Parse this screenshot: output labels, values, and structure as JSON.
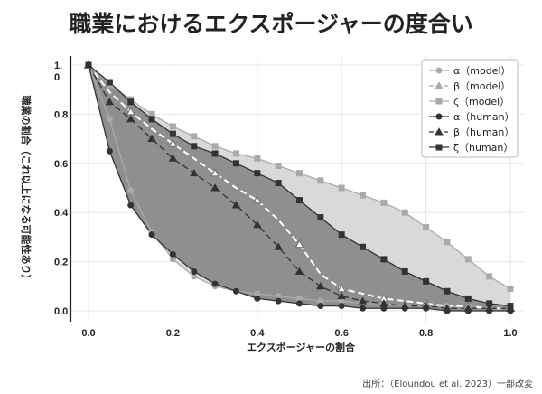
{
  "chart_data": {
    "type": "line",
    "title": "職業におけるエクスポージャーの度合い",
    "xlabel": "エクスポージャーの割合",
    "ylabel": "職業の割合（これ以上になる可能性あり）",
    "source": "出所：（Eloundou et al. 2023）一部改変",
    "xlim": [
      0,
      1
    ],
    "ylim": [
      0,
      1
    ],
    "x_ticks": [
      "0.0",
      "0.2",
      "0.4",
      "0.6",
      "0.8",
      "1.0"
    ],
    "y_ticks": [
      "0.0",
      "0.2",
      "0.4",
      "0.6",
      "0.8",
      "1.\n0"
    ],
    "grid": true,
    "legend_position": "top-right",
    "series": [
      {
        "name": "α（model）",
        "marker": "circle",
        "color": "#aaaaaa",
        "dashed": false,
        "x": [
          0,
          0.05,
          0.1,
          0.15,
          0.2,
          0.25,
          0.3,
          0.35,
          0.4,
          0.45,
          0.5,
          0.55,
          0.6,
          0.65,
          0.7,
          0.75,
          0.8,
          0.85,
          0.9,
          0.95,
          1.0
        ],
        "y": [
          1.0,
          0.78,
          0.49,
          0.32,
          0.21,
          0.14,
          0.1,
          0.08,
          0.07,
          0.06,
          0.05,
          0.04,
          0.04,
          0.03,
          0.03,
          0.02,
          0.02,
          0.02,
          0.01,
          0.01,
          0.01
        ]
      },
      {
        "name": "β（model）",
        "marker": "triangle",
        "color": "#aaaaaa",
        "dashed": true,
        "x": [
          0,
          0.05,
          0.1,
          0.15,
          0.2,
          0.25,
          0.3,
          0.35,
          0.4,
          0.45,
          0.5,
          0.55,
          0.6,
          0.65,
          0.7,
          0.75,
          0.8,
          0.85,
          0.9,
          0.95,
          1.0
        ],
        "y": [
          1.0,
          0.89,
          0.81,
          0.74,
          0.68,
          0.62,
          0.56,
          0.5,
          0.45,
          0.37,
          0.27,
          0.15,
          0.09,
          0.07,
          0.05,
          0.04,
          0.03,
          0.02,
          0.02,
          0.01,
          0.01
        ]
      },
      {
        "name": "ζ（model）",
        "marker": "square",
        "color": "#aaaaaa",
        "dashed": false,
        "x": [
          0,
          0.05,
          0.1,
          0.15,
          0.2,
          0.25,
          0.3,
          0.35,
          0.4,
          0.45,
          0.5,
          0.55,
          0.6,
          0.65,
          0.7,
          0.75,
          0.8,
          0.85,
          0.9,
          0.95,
          1.0
        ],
        "y": [
          1.0,
          0.92,
          0.86,
          0.8,
          0.75,
          0.71,
          0.67,
          0.64,
          0.62,
          0.59,
          0.56,
          0.53,
          0.5,
          0.47,
          0.44,
          0.4,
          0.34,
          0.28,
          0.21,
          0.14,
          0.09
        ]
      },
      {
        "name": "α（human）",
        "marker": "circle",
        "color": "#333333",
        "dashed": false,
        "x": [
          0,
          0.05,
          0.1,
          0.15,
          0.2,
          0.25,
          0.3,
          0.35,
          0.4,
          0.45,
          0.5,
          0.55,
          0.6,
          0.65,
          0.7,
          0.75,
          0.8,
          0.85,
          0.9,
          0.95,
          1.0
        ],
        "y": [
          1.0,
          0.65,
          0.43,
          0.31,
          0.23,
          0.16,
          0.11,
          0.08,
          0.05,
          0.04,
          0.03,
          0.02,
          0.02,
          0.01,
          0.01,
          0.01,
          0.01,
          0.0,
          0.0,
          0.0,
          0.0
        ]
      },
      {
        "name": "β（human）",
        "marker": "triangle",
        "color": "#333333",
        "dashed": true,
        "x": [
          0,
          0.05,
          0.1,
          0.15,
          0.2,
          0.25,
          0.3,
          0.35,
          0.4,
          0.45,
          0.5,
          0.55,
          0.6,
          0.65,
          0.7,
          0.75,
          0.8,
          0.85,
          0.9,
          0.95,
          1.0
        ],
        "y": [
          1.0,
          0.85,
          0.78,
          0.7,
          0.62,
          0.56,
          0.5,
          0.43,
          0.35,
          0.26,
          0.16,
          0.1,
          0.06,
          0.04,
          0.03,
          0.02,
          0.02,
          0.01,
          0.01,
          0.01,
          0.01
        ]
      },
      {
        "name": "ζ（human）",
        "marker": "square",
        "color": "#333333",
        "dashed": false,
        "x": [
          0,
          0.05,
          0.1,
          0.15,
          0.2,
          0.25,
          0.3,
          0.35,
          0.4,
          0.45,
          0.5,
          0.55,
          0.6,
          0.65,
          0.7,
          0.75,
          0.8,
          0.85,
          0.9,
          0.95,
          1.0
        ],
        "y": [
          1.0,
          0.93,
          0.85,
          0.78,
          0.72,
          0.67,
          0.64,
          0.6,
          0.56,
          0.52,
          0.45,
          0.38,
          0.31,
          0.26,
          0.21,
          0.16,
          0.12,
          0.08,
          0.05,
          0.03,
          0.02
        ]
      }
    ],
    "fill_colors": {
      "outer_band": "#d9d9d9",
      "inner_band": "#8f8f8f"
    }
  }
}
